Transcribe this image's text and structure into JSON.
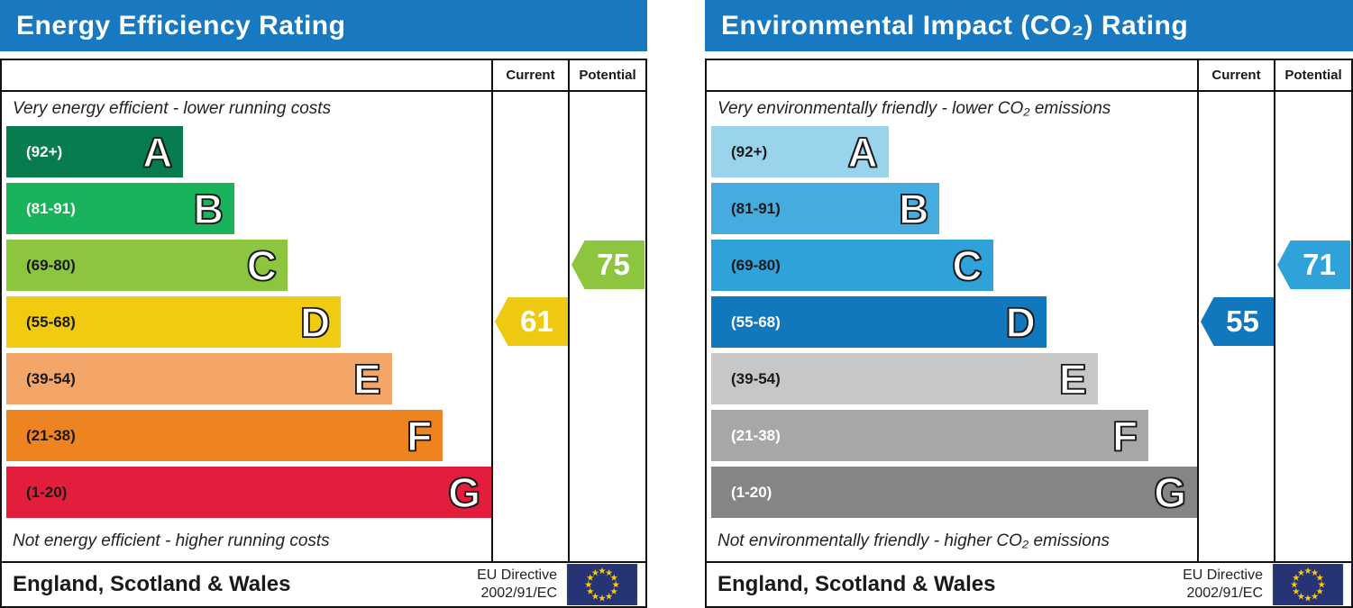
{
  "colors": {
    "header_blue": "#1879c0",
    "flag_blue": "#263375",
    "star_yellow": "#ffcc00"
  },
  "panels": [
    {
      "title": "Energy Efficiency Rating",
      "columns": {
        "current": "Current",
        "potential": "Potential"
      },
      "top_caption": "Very energy efficient - lower running costs",
      "bottom_caption": "Not energy efficient - higher running costs",
      "bands": [
        {
          "letter": "A",
          "range": "(92+)",
          "color": "#077c4f",
          "text": "#ffffff",
          "width_pct": 36.5
        },
        {
          "letter": "B",
          "range": "(81-91)",
          "color": "#19b35b",
          "text": "#ffffff",
          "width_pct": 47
        },
        {
          "letter": "C",
          "range": "(69-80)",
          "color": "#8cc63f",
          "text": "#1a1a1a",
          "width_pct": 58
        },
        {
          "letter": "D",
          "range": "(55-68)",
          "color": "#f1cb11",
          "text": "#1a1a1a",
          "width_pct": 69
        },
        {
          "letter": "E",
          "range": "(39-54)",
          "color": "#f3a668",
          "text": "#1a1a1a",
          "width_pct": 79.5
        },
        {
          "letter": "F",
          "range": "(21-38)",
          "color": "#ee8322",
          "text": "#1a1a1a",
          "width_pct": 90
        },
        {
          "letter": "G",
          "range": "(1-20)",
          "color": "#e31d3c",
          "text": "#1a1a1a",
          "width_pct": 100
        }
      ],
      "current": {
        "label": "61",
        "band": "D",
        "color": "#eec911"
      },
      "potential": {
        "label": "75",
        "band": "C",
        "color": "#8cc63f"
      },
      "footer": {
        "region": "England, Scotland & Wales",
        "directive_line1": "EU Directive",
        "directive_line2": "2002/91/EC"
      }
    },
    {
      "title": "Environmental Impact (CO₂) Rating",
      "columns": {
        "current": "Current",
        "potential": "Potential"
      },
      "top_caption": "Very environmentally friendly - lower CO₂ emissions",
      "bottom_caption": "Not environmentally friendly - higher CO₂ emissions",
      "bands": [
        {
          "letter": "A",
          "range": "(92+)",
          "color": "#9ad3ec",
          "text": "#1a1a1a",
          "width_pct": 36.5
        },
        {
          "letter": "B",
          "range": "(81-91)",
          "color": "#46abdf",
          "text": "#1a1a1a",
          "width_pct": 47
        },
        {
          "letter": "C",
          "range": "(69-80)",
          "color": "#2fa2d9",
          "text": "#1a1a1a",
          "width_pct": 58
        },
        {
          "letter": "D",
          "range": "(55-68)",
          "color": "#1278bd",
          "text": "#ffffff",
          "width_pct": 69
        },
        {
          "letter": "E",
          "range": "(39-54)",
          "color": "#c7c7c7",
          "text": "#1a1a1a",
          "width_pct": 79.5
        },
        {
          "letter": "F",
          "range": "(21-38)",
          "color": "#a7a7a7",
          "text": "#ffffff",
          "width_pct": 90
        },
        {
          "letter": "G",
          "range": "(1-20)",
          "color": "#858585",
          "text": "#ffffff",
          "width_pct": 100
        }
      ],
      "current": {
        "label": "55",
        "band": "D",
        "color": "#1278bd"
      },
      "potential": {
        "label": "71",
        "band": "C",
        "color": "#2fa2d9"
      },
      "footer": {
        "region": "England, Scotland & Wales",
        "directive_line1": "EU Directive",
        "directive_line2": "2002/91/EC"
      }
    }
  ],
  "chart_data": [
    {
      "type": "bar",
      "orientation": "horizontal",
      "title": "Energy Efficiency Rating",
      "categories": [
        "A (92+)",
        "B (81-91)",
        "C (69-80)",
        "D (55-68)",
        "E (39-54)",
        "F (21-38)",
        "G (1-20)"
      ],
      "values": [
        36.5,
        47,
        58,
        69,
        79.5,
        90,
        100
      ],
      "value_note": "relative bar length, % of chart width",
      "markers": [
        {
          "name": "Current",
          "value": 61,
          "band": "D"
        },
        {
          "name": "Potential",
          "value": 75,
          "band": "C"
        }
      ],
      "top_annotation": "Very energy efficient - lower running costs",
      "bottom_annotation": "Not energy efficient - higher running costs",
      "footer": "England, Scotland & Wales | EU Directive 2002/91/EC"
    },
    {
      "type": "bar",
      "orientation": "horizontal",
      "title": "Environmental Impact (CO₂) Rating",
      "categories": [
        "A (92+)",
        "B (81-91)",
        "C (69-80)",
        "D (55-68)",
        "E (39-54)",
        "F (21-38)",
        "G (1-20)"
      ],
      "values": [
        36.5,
        47,
        58,
        69,
        79.5,
        90,
        100
      ],
      "value_note": "relative bar length, % of chart width",
      "markers": [
        {
          "name": "Current",
          "value": 55,
          "band": "D"
        },
        {
          "name": "Potential",
          "value": 71,
          "band": "C"
        }
      ],
      "top_annotation": "Very environmentally friendly - lower CO₂ emissions",
      "bottom_annotation": "Not environmentally friendly - higher CO₂ emissions",
      "footer": "England, Scotland & Wales | EU Directive 2002/91/EC"
    }
  ]
}
